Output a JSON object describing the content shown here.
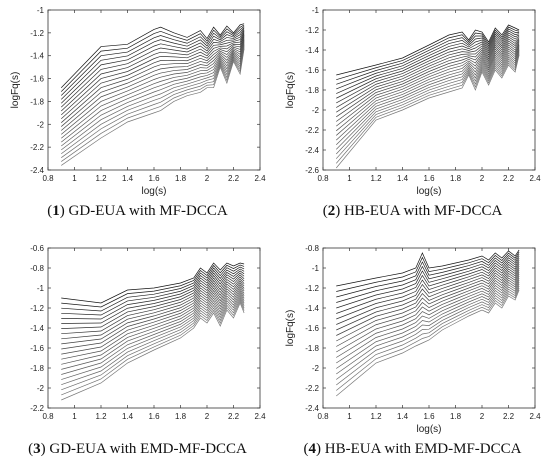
{
  "chart_data": [
    {
      "type": "line",
      "caption_number": "1",
      "caption_text": " GD-EUA with MF-DCCA",
      "xlabel": "log(s)",
      "ylabel": "logFq(s)",
      "xlim": [
        0.8,
        2.4
      ],
      "ylim": [
        -2.4,
        -1
      ],
      "xticks": [
        0.8,
        1,
        1.2,
        1.4,
        1.6,
        1.8,
        2,
        2.2,
        2.4
      ],
      "xtick_labels": [
        "0.8",
        "1",
        "1.2",
        "1.4",
        "1.6",
        "1.8",
        "2",
        "2.2",
        "2.4"
      ],
      "yticks": [
        -2.4,
        -2.2,
        -2,
        -1.8,
        -1.6,
        -1.4,
        -1.2,
        -1
      ],
      "ytick_labels": [
        "-2.4",
        "-2.2",
        "-2",
        "-1.8",
        "-1.6",
        "-1.4",
        "-1.2",
        "-1"
      ],
      "x": [
        0.9,
        1.2,
        1.4,
        1.6,
        1.65,
        1.75,
        1.85,
        1.95,
        2.0,
        2.05,
        2.1,
        2.15,
        2.2,
        2.25,
        2.28
      ],
      "n_series": 21,
      "series_top": [
        -1.68,
        -1.32,
        -1.3,
        -1.17,
        -1.15,
        -1.2,
        -1.24,
        -1.18,
        -1.25,
        -1.15,
        -1.22,
        -1.14,
        -1.2,
        -1.13,
        -1.12
      ],
      "series_bottom": [
        -2.36,
        -2.12,
        -1.98,
        -1.9,
        -1.88,
        -1.8,
        -1.75,
        -1.72,
        -1.68,
        -1.68,
        -1.5,
        -1.64,
        -1.45,
        -1.56,
        -1.34
      ],
      "grid": false,
      "legend": "none"
    },
    {
      "type": "line",
      "caption_number": "2",
      "caption_text": " HB-EUA with MF-DCCA",
      "xlabel": "log(s)",
      "ylabel": "logFq(s)",
      "xlim": [
        0.8,
        2.4
      ],
      "ylim": [
        -2.6,
        -1
      ],
      "xticks": [
        0.8,
        1,
        1.2,
        1.4,
        1.6,
        1.8,
        2,
        2.2,
        2.4
      ],
      "xtick_labels": [
        "0.8",
        "1",
        "1.2",
        "1.4",
        "1.6",
        "1.8",
        "2",
        "2.2",
        "2.4"
      ],
      "yticks": [
        -2.6,
        -2.4,
        -2.2,
        -2,
        -1.8,
        -1.6,
        -1.4,
        -1.2,
        -1
      ],
      "ytick_labels": [
        "-2.6",
        "-2.4",
        "-2.2",
        "-2",
        "-1.8",
        "-1.6",
        "-1.4",
        "-1.2",
        "-1"
      ],
      "x": [
        0.9,
        1.2,
        1.4,
        1.6,
        1.75,
        1.85,
        1.9,
        1.95,
        2.0,
        2.05,
        2.1,
        2.15,
        2.2,
        2.25,
        2.28
      ],
      "n_series": 21,
      "series_top": [
        -1.65,
        -1.55,
        -1.48,
        -1.35,
        -1.25,
        -1.22,
        -1.3,
        -1.2,
        -1.22,
        -1.32,
        -1.18,
        -1.25,
        -1.15,
        -1.18,
        -1.2
      ],
      "series_bottom": [
        -2.58,
        -2.1,
        -2.0,
        -1.88,
        -1.82,
        -1.78,
        -1.65,
        -1.8,
        -1.62,
        -1.75,
        -1.6,
        -1.68,
        -1.55,
        -1.62,
        -1.45
      ],
      "grid": false,
      "legend": "none"
    },
    {
      "type": "line",
      "caption_number": "3",
      "caption_text": " GD-EUA with EMD-MF-DCCA",
      "xlabel": "",
      "ylabel": "",
      "xlim": [
        0.8,
        2.4
      ],
      "ylim": [
        -2.2,
        -0.6
      ],
      "xticks": [
        0.8,
        1,
        1.2,
        1.4,
        1.6,
        1.8,
        2,
        2.2,
        2.4
      ],
      "xtick_labels": [
        "0.8",
        "1",
        "1.2",
        "1.4",
        "1.6",
        "1.8",
        "2",
        "2.2",
        "2.4"
      ],
      "yticks": [
        -2.2,
        -2,
        -1.8,
        -1.6,
        -1.4,
        -1.2,
        -1,
        -0.8,
        -0.6
      ],
      "ytick_labels": [
        "-2.2",
        "-2",
        "-1.8",
        "-1.6",
        "-1.4",
        "-1.2",
        "-1",
        "-0.8",
        "-0.6"
      ],
      "x": [
        0.9,
        1.2,
        1.4,
        1.6,
        1.8,
        1.9,
        1.95,
        2.0,
        2.05,
        2.1,
        2.15,
        2.2,
        2.25,
        2.28
      ],
      "n_series": 21,
      "series_top": [
        -1.1,
        -1.15,
        -1.02,
        -1.0,
        -0.95,
        -0.9,
        -0.8,
        -0.85,
        -0.75,
        -0.82,
        -0.75,
        -0.78,
        -0.75,
        -0.76
      ],
      "series_bottom": [
        -2.12,
        -1.95,
        -1.75,
        -1.62,
        -1.5,
        -1.4,
        -1.3,
        -1.35,
        -1.25,
        -1.38,
        -1.22,
        -1.3,
        -1.15,
        -1.25
      ],
      "grid": false,
      "legend": "none"
    },
    {
      "type": "line",
      "caption_number": "4",
      "caption_text": " HB-EUA with EMD-MF-DCCA",
      "xlabel": "log(s)",
      "ylabel": "logFq(s)",
      "xlim": [
        0.8,
        2.4
      ],
      "ylim": [
        -2.4,
        -0.8
      ],
      "xticks": [
        0.8,
        1,
        1.2,
        1.4,
        1.6,
        1.8,
        2,
        2.2,
        2.4
      ],
      "xtick_labels": [
        "0.8",
        "1",
        "1.2",
        "1.4",
        "1.6",
        "1.8",
        "2",
        "2.2",
        "2.4"
      ],
      "yticks": [
        -2.4,
        -2.2,
        -2,
        -1.8,
        -1.6,
        -1.4,
        -1.2,
        -1,
        -0.8
      ],
      "ytick_labels": [
        "-2.4",
        "-2.2",
        "-2",
        "-1.8",
        "-1.6",
        "-1.4",
        "-1.2",
        "-1",
        "-0.8"
      ],
      "x": [
        0.9,
        1.2,
        1.4,
        1.5,
        1.55,
        1.6,
        1.7,
        1.8,
        1.9,
        2.0,
        2.05,
        2.1,
        2.15,
        2.2,
        2.25,
        2.28
      ],
      "n_series": 21,
      "series_top": [
        -1.18,
        -1.1,
        -1.05,
        -1.0,
        -0.85,
        -1.0,
        -0.98,
        -0.95,
        -0.92,
        -0.88,
        -0.92,
        -0.85,
        -0.9,
        -0.83,
        -0.88,
        -0.82
      ],
      "series_bottom": [
        -2.28,
        -1.95,
        -1.85,
        -1.78,
        -1.75,
        -1.72,
        -1.62,
        -1.55,
        -1.48,
        -1.42,
        -1.45,
        -1.35,
        -1.4,
        -1.28,
        -1.32,
        -1.22
      ],
      "grid": false,
      "legend": "none"
    }
  ]
}
